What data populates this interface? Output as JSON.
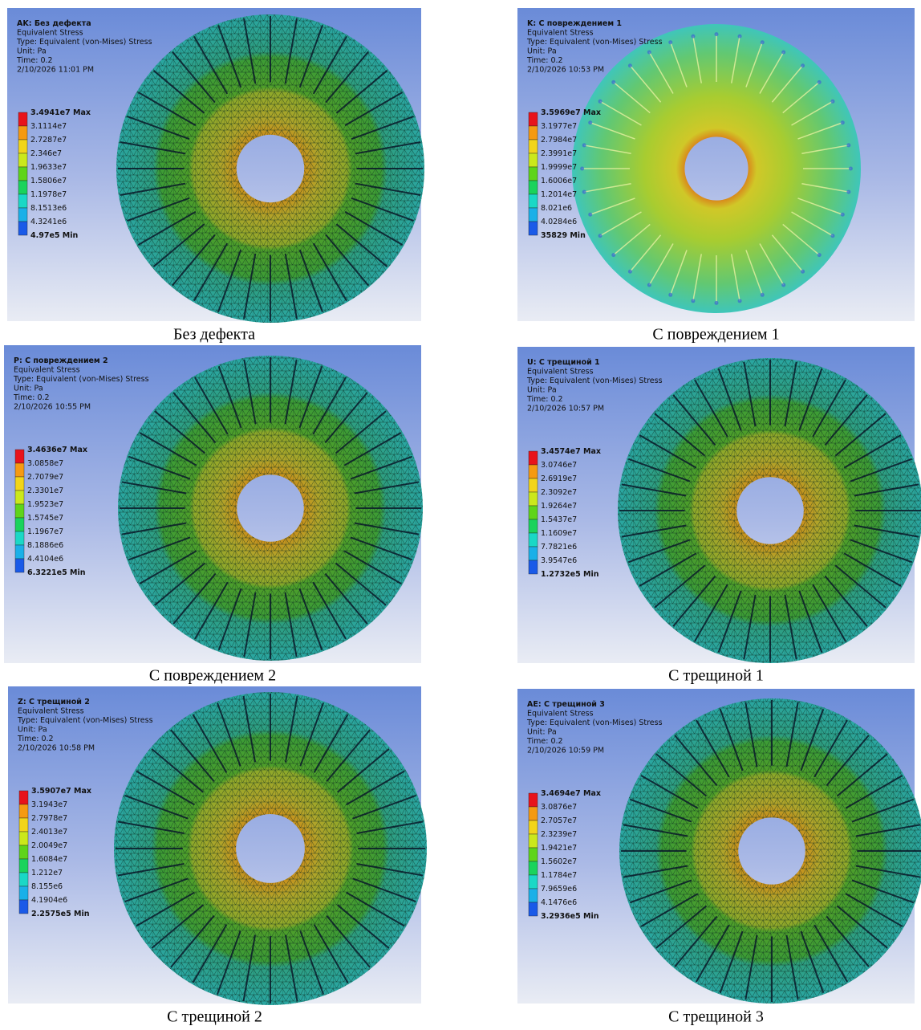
{
  "panels": [
    {
      "header": {
        "title": "AK: Без дефекта",
        "result": "Equivalent Stress",
        "type": "Type: Equivalent (von-Mises) Stress",
        "unit": "Unit: Pa",
        "time": "Time: 0.2",
        "date": "2/10/2026 11:01 PM"
      },
      "legend": [
        "3.4941e7 Max",
        "3.1114e7",
        "2.7287e7",
        "2.346e7",
        "1.9633e7",
        "1.5806e7",
        "1.1978e7",
        "8.1513e6",
        "4.3241e6",
        "4.97e5 Min"
      ],
      "caption": "Без дефекта"
    },
    {
      "header": {
        "title": "K: С повреждением 1",
        "result": "Equivalent Stress",
        "type": "Type: Equivalent (von-Mises) Stress",
        "unit": "Unit: Pa",
        "time": "Time: 0.2",
        "date": "2/10/2026 10:53 PM"
      },
      "legend": [
        "3.5969e7 Max",
        "3.1977e7",
        "2.7984e7",
        "2.3991e7",
        "1.9999e7",
        "1.6006e7",
        "1.2014e7",
        "8.021e6",
        "4.0284e6",
        "35829 Min"
      ],
      "caption": "С повреждением 1"
    },
    {
      "header": {
        "title": "P: С повреждением 2",
        "result": "Equivalent Stress",
        "type": "Type: Equivalent (von-Mises) Stress",
        "unit": "Unit: Pa",
        "time": "Time: 0.2",
        "date": "2/10/2026 10:55 PM"
      },
      "legend": [
        "3.4636e7 Max",
        "3.0858e7",
        "2.7079e7",
        "2.3301e7",
        "1.9523e7",
        "1.5745e7",
        "1.1967e7",
        "8.1886e6",
        "4.4104e6",
        "6.3221e5 Min"
      ],
      "caption": "С повреждением 2"
    },
    {
      "header": {
        "title": "U: С трещиной 1",
        "result": "Equivalent Stress",
        "type": "Type: Equivalent (von-Mises) Stress",
        "unit": "Unit: Pa",
        "time": "Time: 0.2",
        "date": "2/10/2026 10:57 PM"
      },
      "legend": [
        "3.4574e7 Max",
        "3.0746e7",
        "2.6919e7",
        "2.3092e7",
        "1.9264e7",
        "1.5437e7",
        "1.1609e7",
        "7.7821e6",
        "3.9547e6",
        "1.2732e5 Min"
      ],
      "caption": "С трещиной 1"
    },
    {
      "header": {
        "title": "Z: С трещиной 2",
        "result": "Equivalent Stress",
        "type": "Type: Equivalent (von-Mises) Stress",
        "unit": "Unit: Pa",
        "time": "Time: 0.2",
        "date": "2/10/2026 10:58 PM"
      },
      "legend": [
        "3.5907e7 Max",
        "3.1943e7",
        "2.7978e7",
        "2.4013e7",
        "2.0049e7",
        "1.6084e7",
        "1.212e7",
        "8.155e6",
        "4.1904e6",
        "2.2575e5 Min"
      ],
      "caption": "С трещиной 2"
    },
    {
      "header": {
        "title": "AE: С трещиной 3",
        "result": "Equivalent Stress",
        "type": "Type: Equivalent (von-Mises) Stress",
        "unit": "Unit: Pa",
        "time": "Time: 0.2",
        "date": "2/10/2026 10:59 PM"
      },
      "legend": [
        "3.4694e7 Max",
        "3.0876e7",
        "2.7057e7",
        "2.3239e7",
        "1.9421e7",
        "1.5602e7",
        "1.1784e7",
        "7.9659e6",
        "4.1476e6",
        "3.2936e5 Min"
      ],
      "caption": "С трещиной 3"
    }
  ]
}
